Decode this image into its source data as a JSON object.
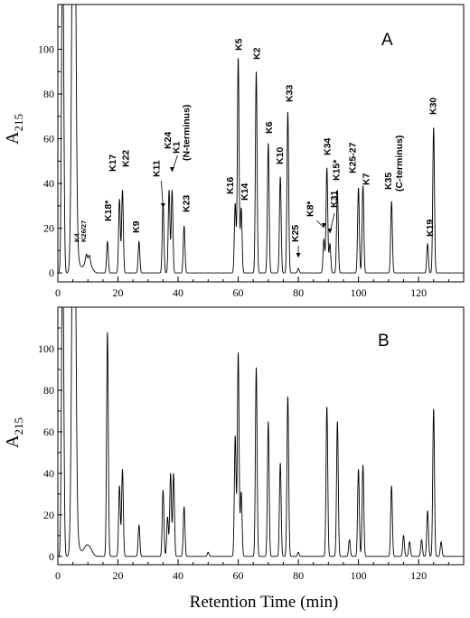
{
  "chart_data": [
    {
      "type": "line",
      "panel": "A",
      "ylabel": "A",
      "ylabel_subscript": "215",
      "xlabel": "",
      "xlim": [
        0,
        135
      ],
      "ylim": [
        -4,
        120
      ],
      "x_ticks": [
        0,
        20,
        40,
        60,
        80,
        100,
        120
      ],
      "y_ticks": [
        0,
        20,
        40,
        60,
        80,
        100
      ],
      "baseline": 0,
      "peaks": [
        {
          "label": "K4",
          "x": 9.5,
          "y": 3
        },
        {
          "label": "K26/27",
          "x": 10.5,
          "y": 3
        },
        {
          "label": "K18*",
          "x": 16.5,
          "y": 14
        },
        {
          "label": "K17",
          "x": 20.5,
          "y": 33
        },
        {
          "label": "K22",
          "x": 21.5,
          "y": 37
        },
        {
          "label": "K9",
          "x": 27,
          "y": 14
        },
        {
          "label": "K11",
          "x": 35,
          "y": 31
        },
        {
          "label": "K24",
          "x": 37,
          "y": 37
        },
        {
          "label": "K1",
          "x": 38,
          "y": 37
        },
        {
          "label": "K23",
          "x": 42,
          "y": 21
        },
        {
          "label": "K16",
          "x": 59,
          "y": 31
        },
        {
          "label": "K5",
          "x": 60,
          "y": 96
        },
        {
          "label": "K14",
          "x": 61,
          "y": 29
        },
        {
          "label": "K2",
          "x": 66,
          "y": 90
        },
        {
          "label": "K6",
          "x": 70,
          "y": 58
        },
        {
          "label": "K10",
          "x": 74,
          "y": 43
        },
        {
          "label": "K33",
          "x": 76.5,
          "y": 72
        },
        {
          "label": "K25",
          "x": 80,
          "y": 2
        },
        {
          "label": "K8*",
          "x": 88.5,
          "y": 15
        },
        {
          "label": "K34",
          "x": 89.5,
          "y": 47
        },
        {
          "label": "K31",
          "x": 90.5,
          "y": 13
        },
        {
          "label": "K15*",
          "x": 93,
          "y": 37
        },
        {
          "label": "K25-27",
          "x": 100,
          "y": 38
        },
        {
          "label": "K7",
          "x": 101.5,
          "y": 39
        },
        {
          "label": "K35",
          "x": 111,
          "y": 32
        },
        {
          "label": "K19",
          "x": 123,
          "y": 13
        },
        {
          "label": "K30",
          "x": 125,
          "y": 65
        }
      ],
      "annotations": [
        {
          "text": "(N-terminus)",
          "near": "K1"
        },
        {
          "text": "(C-terminus)",
          "near": "K35"
        }
      ]
    },
    {
      "type": "line",
      "panel": "B",
      "ylabel": "A",
      "ylabel_subscript": "215",
      "xlabel": "Retention Time (min)",
      "xlim": [
        0,
        135
      ],
      "ylim": [
        -4,
        120
      ],
      "x_ticks": [
        0,
        20,
        40,
        60,
        80,
        100,
        120
      ],
      "y_ticks": [
        0,
        20,
        40,
        60,
        80,
        100
      ],
      "baseline": 0,
      "peaks": [
        {
          "x": 16.5,
          "y": 108
        },
        {
          "x": 20.5,
          "y": 34
        },
        {
          "x": 21.5,
          "y": 42
        },
        {
          "x": 27,
          "y": 15
        },
        {
          "x": 35,
          "y": 32
        },
        {
          "x": 36.5,
          "y": 19
        },
        {
          "x": 37.5,
          "y": 40
        },
        {
          "x": 38.5,
          "y": 40
        },
        {
          "x": 42,
          "y": 24
        },
        {
          "x": 50,
          "y": 2
        },
        {
          "x": 59,
          "y": 58
        },
        {
          "x": 60,
          "y": 98
        },
        {
          "x": 61,
          "y": 31
        },
        {
          "x": 66,
          "y": 91
        },
        {
          "x": 70,
          "y": 65
        },
        {
          "x": 74,
          "y": 45
        },
        {
          "x": 76.5,
          "y": 77
        },
        {
          "x": 80,
          "y": 2
        },
        {
          "x": 89.5,
          "y": 72
        },
        {
          "x": 93,
          "y": 65
        },
        {
          "x": 97,
          "y": 8
        },
        {
          "x": 100,
          "y": 42
        },
        {
          "x": 101.5,
          "y": 44
        },
        {
          "x": 111,
          "y": 34
        },
        {
          "x": 115,
          "y": 10
        },
        {
          "x": 117,
          "y": 7
        },
        {
          "x": 121,
          "y": 8
        },
        {
          "x": 123,
          "y": 22
        },
        {
          "x": 125,
          "y": 71
        },
        {
          "x": 127.5,
          "y": 7
        }
      ]
    }
  ]
}
